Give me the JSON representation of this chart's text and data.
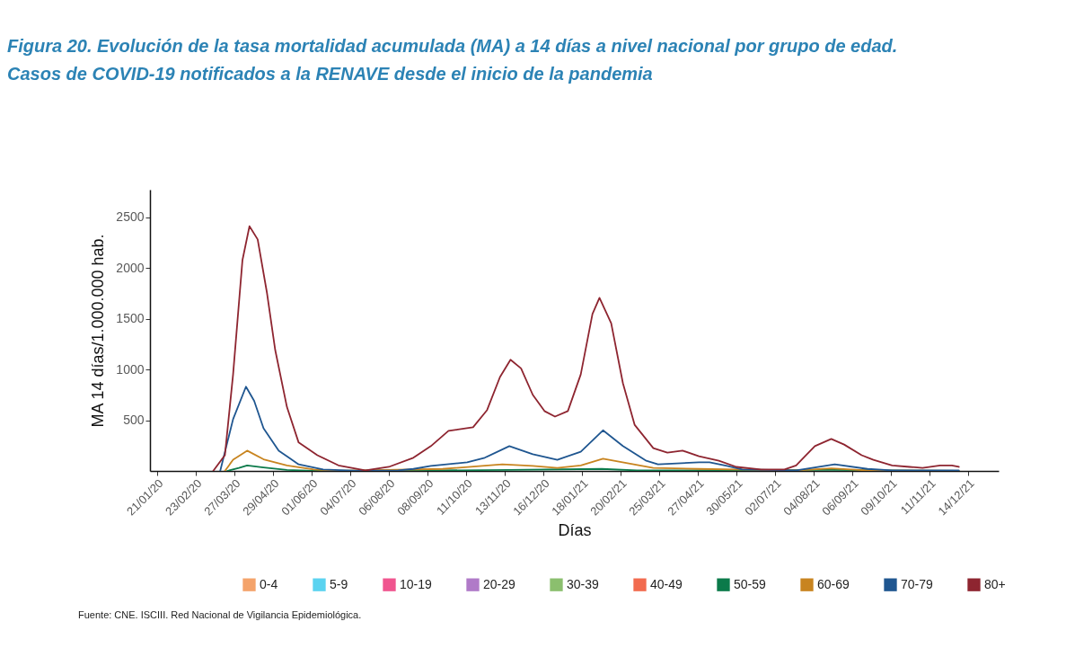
{
  "chart_data": {
    "type": "line",
    "title": [
      "Figura 20. Evolución de la tasa mortalidad acumulada (MA) a 14 días a nivel nacional por grupo de edad.",
      "Casos de COVID-19 notificados a la RENAVE desde el inicio de la pandemia"
    ],
    "xlabel": "Días",
    "ylabel": "MA 14 días/1.000.000 hab.",
    "legend": "bottom",
    "grid": false,
    "line_style": "solid",
    "xlim": [
      "2020-01-15",
      "2022-01-09"
    ],
    "xticks": [
      {
        "value": "2020-01-21",
        "label": "21/01/20"
      },
      {
        "value": "2020-02-23",
        "label": "23/02/20"
      },
      {
        "value": "2020-03-27",
        "label": "27/03/20"
      },
      {
        "value": "2020-04-29",
        "label": "29/04/20"
      },
      {
        "value": "2020-06-01",
        "label": "01/06/20"
      },
      {
        "value": "2020-07-04",
        "label": "04/07/20"
      },
      {
        "value": "2020-08-06",
        "label": "06/08/20"
      },
      {
        "value": "2020-09-08",
        "label": "08/09/20"
      },
      {
        "value": "2020-10-11",
        "label": "11/10/20"
      },
      {
        "value": "2020-11-13",
        "label": "13/11/20"
      },
      {
        "value": "2020-12-16",
        "label": "16/12/20"
      },
      {
        "value": "2021-01-18",
        "label": "18/01/21"
      },
      {
        "value": "2021-02-20",
        "label": "20/02/21"
      },
      {
        "value": "2021-03-25",
        "label": "25/03/21"
      },
      {
        "value": "2021-04-27",
        "label": "27/04/21"
      },
      {
        "value": "2021-05-30",
        "label": "30/05/21"
      },
      {
        "value": "2021-07-02",
        "label": "02/07/21"
      },
      {
        "value": "2021-08-04",
        "label": "04/08/21"
      },
      {
        "value": "2021-09-06",
        "label": "06/09/21"
      },
      {
        "value": "2021-10-09",
        "label": "09/10/21"
      },
      {
        "value": "2021-11-11",
        "label": "11/11/21"
      },
      {
        "value": "2021-12-14",
        "label": "14/12/21"
      }
    ],
    "ylim": [
      0,
      2770
    ],
    "yticks": [
      500,
      1000,
      1500,
      2000,
      2500
    ],
    "series": [
      {
        "name": "0-4",
        "color": "#f4a36b"
      },
      {
        "name": "5-9",
        "color": "#5bd3f0"
      },
      {
        "name": "10-19",
        "color": "#f0558f"
      },
      {
        "name": "20-29",
        "color": "#b07ac8"
      },
      {
        "name": "30-39",
        "color": "#8bbf6e"
      },
      {
        "name": "40-49",
        "color": "#f26b4f"
      },
      {
        "name": "50-59",
        "color": "#0b7a4a",
        "x": [
          "2020-03-21",
          "2020-03-31",
          "2020-04-07",
          "2020-04-21",
          "2020-05-11",
          "2020-06-03",
          "2020-09-17",
          "2020-11-16",
          "2021-02-04",
          "2021-03-06",
          "2021-08-19",
          "2021-12-06"
        ],
        "values": [
          0,
          30,
          55,
          35,
          10,
          0,
          5,
          10,
          20,
          5,
          10,
          0
        ]
      },
      {
        "name": "60-69",
        "color": "#c8841f",
        "x": [
          "2020-03-19",
          "2020-03-26",
          "2020-04-07",
          "2020-04-21",
          "2020-05-11",
          "2020-06-03",
          "2020-06-24",
          "2020-09-21",
          "2020-11-11",
          "2020-12-07",
          "2020-12-28",
          "2021-01-17",
          "2021-02-05",
          "2021-02-27",
          "2021-03-20",
          "2021-04-28",
          "2021-05-30",
          "2021-07-20",
          "2021-08-19",
          "2021-09-19",
          "2021-12-06"
        ],
        "values": [
          0,
          110,
          200,
          115,
          55,
          15,
          0,
          20,
          65,
          50,
          30,
          55,
          120,
          75,
          30,
          20,
          15,
          5,
          25,
          5,
          0
        ]
      },
      {
        "name": "70-79",
        "color": "#1f5690",
        "x": [
          "2020-03-15",
          "2020-03-26",
          "2020-04-06",
          "2020-04-13",
          "2020-04-21",
          "2020-05-04",
          "2020-05-21",
          "2020-06-11",
          "2020-07-11",
          "2020-08-14",
          "2020-08-27",
          "2020-09-11",
          "2020-10-12",
          "2020-10-27",
          "2020-11-17",
          "2020-12-07",
          "2020-12-28",
          "2021-01-17",
          "2021-02-05",
          "2021-02-22",
          "2021-03-14",
          "2021-03-24",
          "2021-04-28",
          "2021-05-07",
          "2021-05-22",
          "2021-06-04",
          "2021-07-20",
          "2021-08-22",
          "2021-09-19",
          "2021-10-10",
          "2021-12-06"
        ],
        "values": [
          0,
          510,
          830,
          690,
          420,
          200,
          65,
          15,
          0,
          5,
          20,
          50,
          85,
          130,
          245,
          165,
          110,
          190,
          400,
          245,
          100,
          65,
          85,
          85,
          50,
          15,
          5,
          65,
          20,
          5,
          5
        ]
      },
      {
        "name": "80+",
        "color": "#8e2530",
        "x": [
          "2020-03-09",
          "2020-03-19",
          "2020-03-26",
          "2020-04-03",
          "2020-04-09",
          "2020-04-16",
          "2020-04-24",
          "2020-05-01",
          "2020-05-11",
          "2020-05-21",
          "2020-06-06",
          "2020-06-24",
          "2020-07-17",
          "2020-08-06",
          "2020-08-27",
          "2020-09-11",
          "2020-09-26",
          "2020-10-17",
          "2020-10-29",
          "2020-11-09",
          "2020-11-18",
          "2020-11-27",
          "2020-12-07",
          "2020-12-17",
          "2020-12-26",
          "2021-01-06",
          "2021-01-17",
          "2021-01-27",
          "2021-02-02",
          "2021-02-12",
          "2021-02-22",
          "2021-03-04",
          "2021-03-20",
          "2021-04-01",
          "2021-04-14",
          "2021-04-28",
          "2021-05-15",
          "2021-05-30",
          "2021-06-20",
          "2021-07-10",
          "2021-07-20",
          "2021-08-05",
          "2021-08-19",
          "2021-08-30",
          "2021-09-14",
          "2021-09-24",
          "2021-10-10",
          "2021-10-25",
          "2021-11-05",
          "2021-11-20",
          "2021-11-30",
          "2021-12-06"
        ],
        "values": [
          0,
          155,
          950,
          2075,
          2410,
          2280,
          1750,
          1190,
          630,
          280,
          155,
          55,
          5,
          40,
          130,
          245,
          395,
          430,
          600,
          925,
          1095,
          1010,
          750,
          590,
          535,
          590,
          950,
          1545,
          1705,
          1455,
          865,
          455,
          225,
          180,
          200,
          145,
          100,
          40,
          15,
          15,
          55,
          245,
          315,
          260,
          155,
          110,
          55,
          40,
          30,
          55,
          55,
          40
        ]
      }
    ],
    "annotations": [
      "Fuente: CNE. ISCIII. Red Nacional de Vigilancia Epidemiológica."
    ]
  }
}
